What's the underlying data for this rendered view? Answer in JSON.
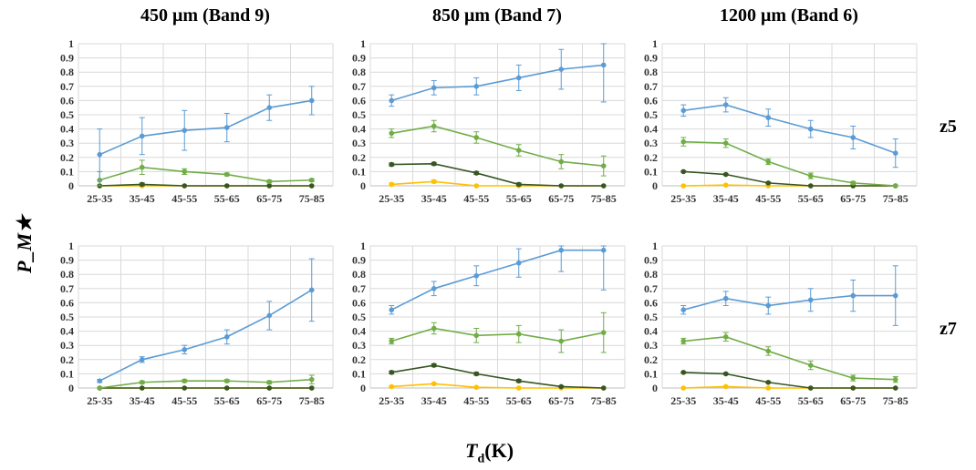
{
  "figure": {
    "column_titles": [
      "450 μm (Band 9)",
      "850 μm (Band 7)",
      "1200 μm (Band 6)"
    ],
    "row_labels": [
      "z5",
      "z7"
    ],
    "ylabel": "P_M★",
    "xlabel_main": "T",
    "xlabel_sub": "d",
    "xlabel_unit": "(K)"
  },
  "colors": {
    "blue": "#5b9bd5",
    "light_green": "#70ad47",
    "dark_green": "#375623",
    "yellow": "#ffc000",
    "grid": "#d9d9d9",
    "axis": "#bfbfbf"
  },
  "chart_data": [
    {
      "type": "line",
      "panel": "450 μm (Band 9) / z5",
      "categories": [
        "25-35",
        "35-45",
        "45-55",
        "55-65",
        "65-75",
        "75-85"
      ],
      "yticks": [
        "0",
        "0.1",
        "0.2",
        "0.3",
        "0.4",
        "0.5",
        "0.6",
        "0.7",
        "0.8",
        "0.9",
        "1"
      ],
      "ylim": [
        0,
        1
      ],
      "grid": true,
      "legend": "none",
      "series": [
        {
          "color": "blue",
          "values": [
            0.22,
            0.35,
            0.39,
            0.41,
            0.55,
            0.6
          ],
          "errors": [
            0.18,
            0.13,
            0.14,
            0.1,
            0.09,
            0.1
          ]
        },
        {
          "color": "light_green",
          "values": [
            0.04,
            0.13,
            0.1,
            0.08,
            0.03,
            0.04
          ],
          "errors": [
            0.06,
            0.05,
            0.02,
            0.01,
            0.01,
            0.01
          ]
        },
        {
          "color": "dark_green",
          "values": [
            0.0,
            0.01,
            0.0,
            0.0,
            0.0,
            0.0
          ],
          "errors": [
            0,
            0.01,
            0,
            0,
            0,
            0
          ]
        },
        {
          "color": "yellow",
          "values": [
            0.0,
            0.0,
            0.0,
            0.0,
            0.0,
            0.0
          ],
          "errors": [
            0,
            0,
            0,
            0,
            0,
            0
          ]
        }
      ]
    },
    {
      "type": "line",
      "panel": "850 μm (Band 7) / z5",
      "categories": [
        "25-35",
        "35-45",
        "45-55",
        "55-65",
        "65-75",
        "75-85"
      ],
      "yticks": [
        "0",
        "0.1",
        "0.2",
        "0.3",
        "0.4",
        "0.5",
        "0.6",
        "0.7",
        "0.8",
        "0.9",
        "1"
      ],
      "ylim": [
        0,
        1
      ],
      "grid": true,
      "legend": "none",
      "series": [
        {
          "color": "blue",
          "values": [
            0.6,
            0.69,
            0.7,
            0.76,
            0.82,
            0.85
          ],
          "errors": [
            0.04,
            0.05,
            0.06,
            0.09,
            0.14,
            0.26
          ]
        },
        {
          "color": "light_green",
          "values": [
            0.37,
            0.42,
            0.34,
            0.25,
            0.17,
            0.14
          ],
          "errors": [
            0.03,
            0.04,
            0.04,
            0.04,
            0.05,
            0.07
          ]
        },
        {
          "color": "dark_green",
          "values": [
            0.15,
            0.155,
            0.09,
            0.01,
            0.0,
            0.0
          ],
          "errors": [
            0.01,
            0.01,
            0.01,
            0.01,
            0,
            0
          ]
        },
        {
          "color": "yellow",
          "values": [
            0.01,
            0.03,
            0.0,
            0.0,
            0.0,
            0.0
          ],
          "errors": [
            0.01,
            0.01,
            0,
            0,
            0,
            0
          ]
        }
      ]
    },
    {
      "type": "line",
      "panel": "1200 μm (Band 6) / z5",
      "categories": [
        "25-35",
        "35-45",
        "45-55",
        "55-65",
        "65-75",
        "75-85"
      ],
      "yticks": [
        "0",
        "0.1",
        "0.2",
        "0.3",
        "0.4",
        "0.5",
        "0.6",
        "0.7",
        "0.8",
        "0.9",
        "1"
      ],
      "ylim": [
        0,
        1
      ],
      "grid": true,
      "legend": "none",
      "series": [
        {
          "color": "blue",
          "values": [
            0.53,
            0.57,
            0.48,
            0.4,
            0.34,
            0.23
          ],
          "errors": [
            0.04,
            0.05,
            0.06,
            0.06,
            0.08,
            0.1
          ]
        },
        {
          "color": "light_green",
          "values": [
            0.31,
            0.3,
            0.17,
            0.07,
            0.02,
            0.0
          ],
          "errors": [
            0.03,
            0.03,
            0.02,
            0.02,
            0.01,
            0
          ]
        },
        {
          "color": "dark_green",
          "values": [
            0.1,
            0.08,
            0.02,
            0.0,
            0.0,
            0.0
          ],
          "errors": [
            0.005,
            0.005,
            0.005,
            0,
            0,
            0
          ]
        },
        {
          "color": "yellow",
          "values": [
            0.0,
            0.005,
            0.0,
            0.0,
            0.0,
            0.0
          ],
          "errors": [
            0,
            0,
            0,
            0,
            0,
            0
          ]
        }
      ]
    },
    {
      "type": "line",
      "panel": "450 μm (Band 9) / z7",
      "categories": [
        "25-35",
        "35-45",
        "45-55",
        "55-65",
        "65-75",
        "75-85"
      ],
      "yticks": [
        "0",
        "0.1",
        "0.2",
        "0.3",
        "0.4",
        "0.5",
        "0.6",
        "0.7",
        "0.8",
        "0.9",
        "1"
      ],
      "ylim": [
        0,
        1
      ],
      "grid": true,
      "legend": "none",
      "series": [
        {
          "color": "blue",
          "values": [
            0.05,
            0.2,
            0.27,
            0.36,
            0.51,
            0.69
          ],
          "errors": [
            0.01,
            0.02,
            0.03,
            0.05,
            0.1,
            0.22
          ]
        },
        {
          "color": "light_green",
          "values": [
            0.0,
            0.04,
            0.05,
            0.05,
            0.04,
            0.06
          ],
          "errors": [
            0,
            0.01,
            0.01,
            0.01,
            0.01,
            0.03
          ]
        },
        {
          "color": "dark_green",
          "values": [
            0.0,
            0.0,
            0.0,
            0.0,
            0.0,
            0.0
          ],
          "errors": [
            0,
            0,
            0,
            0,
            0,
            0
          ]
        },
        {
          "color": "yellow",
          "values": [
            0.0,
            0.0,
            0.0,
            0.0,
            0.0,
            0.0
          ],
          "errors": [
            0,
            0,
            0,
            0,
            0,
            0
          ]
        }
      ]
    },
    {
      "type": "line",
      "panel": "850 μm (Band 7) / z7",
      "categories": [
        "25-35",
        "35-45",
        "45-55",
        "55-65",
        "65-75",
        "75-85"
      ],
      "yticks": [
        "0",
        "0.1",
        "0.2",
        "0.3",
        "0.4",
        "0.5",
        "0.6",
        "0.7",
        "0.8",
        "0.9",
        "1"
      ],
      "ylim": [
        0,
        1
      ],
      "grid": true,
      "legend": "none",
      "series": [
        {
          "color": "blue",
          "values": [
            0.55,
            0.7,
            0.79,
            0.88,
            0.97,
            0.97
          ],
          "errors": [
            0.03,
            0.05,
            0.07,
            0.1,
            0.15,
            0.28
          ]
        },
        {
          "color": "light_green",
          "values": [
            0.33,
            0.42,
            0.37,
            0.38,
            0.33,
            0.39
          ],
          "errors": [
            0.02,
            0.04,
            0.05,
            0.06,
            0.08,
            0.14
          ]
        },
        {
          "color": "dark_green",
          "values": [
            0.11,
            0.16,
            0.1,
            0.05,
            0.01,
            0.0
          ],
          "errors": [
            0.01,
            0.01,
            0.01,
            0.01,
            0.005,
            0
          ]
        },
        {
          "color": "yellow",
          "values": [
            0.01,
            0.03,
            0.005,
            0.0,
            0.0,
            0.0
          ],
          "errors": [
            0.005,
            0.005,
            0,
            0,
            0,
            0
          ]
        }
      ]
    },
    {
      "type": "line",
      "panel": "1200 μm (Band 6) / z7",
      "categories": [
        "25-35",
        "35-45",
        "45-55",
        "55-65",
        "65-75",
        "75-85"
      ],
      "yticks": [
        "0",
        "0.1",
        "0.2",
        "0.3",
        "0.4",
        "0.5",
        "0.6",
        "0.7",
        "0.8",
        "0.9",
        "1"
      ],
      "ylim": [
        0,
        1
      ],
      "grid": true,
      "legend": "none",
      "series": [
        {
          "color": "blue",
          "values": [
            0.55,
            0.63,
            0.58,
            0.62,
            0.65,
            0.65
          ],
          "errors": [
            0.03,
            0.05,
            0.06,
            0.08,
            0.11,
            0.21
          ]
        },
        {
          "color": "light_green",
          "values": [
            0.33,
            0.36,
            0.26,
            0.16,
            0.07,
            0.06
          ],
          "errors": [
            0.02,
            0.03,
            0.03,
            0.03,
            0.02,
            0.02
          ]
        },
        {
          "color": "dark_green",
          "values": [
            0.11,
            0.1,
            0.04,
            0.0,
            0.0,
            0.0
          ],
          "errors": [
            0.005,
            0.005,
            0.005,
            0,
            0,
            0
          ]
        },
        {
          "color": "yellow",
          "values": [
            0.0,
            0.01,
            0.0,
            0.0,
            0.0,
            0.0
          ],
          "errors": [
            0,
            0,
            0,
            0,
            0,
            0
          ]
        }
      ]
    }
  ]
}
